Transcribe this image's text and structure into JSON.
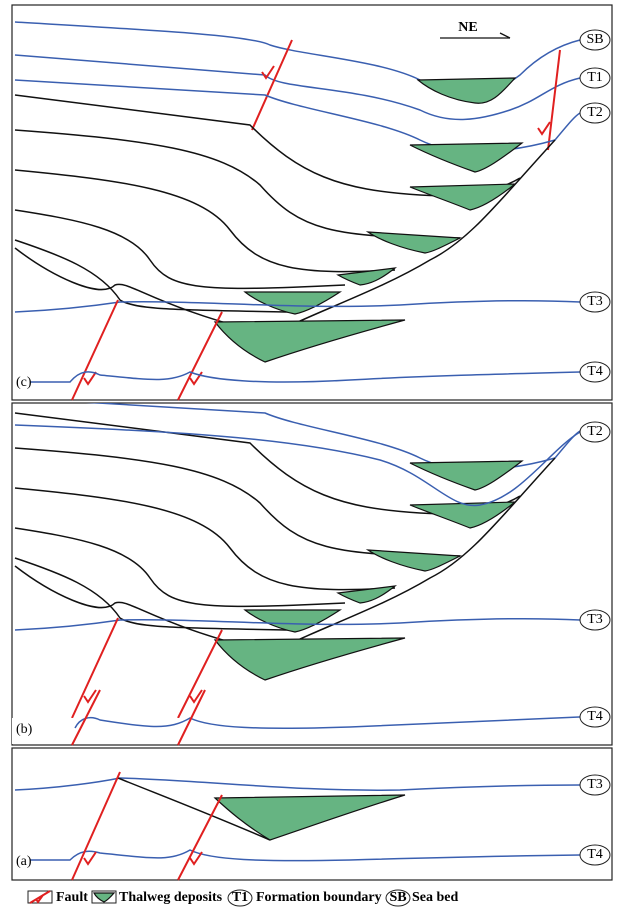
{
  "direction": "NE",
  "panels": [
    {
      "label": "(c)",
      "boundaries": [
        "SB",
        "T1",
        "T2",
        "T3",
        "T4"
      ]
    },
    {
      "label": "(b)",
      "boundaries": [
        "T2",
        "T3",
        "T4"
      ]
    },
    {
      "label": "(a)",
      "boundaries": [
        "T3",
        "T4"
      ]
    }
  ],
  "legend": [
    {
      "label": "Fault"
    },
    {
      "label": "Thalweg deposits"
    },
    {
      "symbol": "T1",
      "label": "Formation boundary"
    },
    {
      "symbol": "SB",
      "label": "Sea bed"
    }
  ]
}
